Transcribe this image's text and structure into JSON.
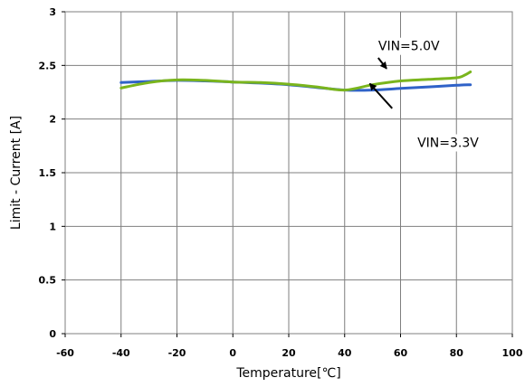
{
  "chart_data": {
    "type": "line",
    "title": "",
    "xlabel": "Temperature[℃]",
    "ylabel": "Limit - Current [A]",
    "xlim": [
      -60,
      100
    ],
    "ylim": [
      0,
      3
    ],
    "x_ticks": [
      -60,
      -40,
      -20,
      0,
      20,
      40,
      60,
      80,
      100
    ],
    "y_ticks": [
      0,
      0.5,
      1,
      1.5,
      2,
      2.5,
      3
    ],
    "x_tick_labels": [
      "-60",
      "-40",
      "-20",
      "0",
      "20",
      "40",
      "60",
      "80",
      "100"
    ],
    "y_tick_labels": [
      "0",
      "0.5",
      "1",
      "1.5",
      "2",
      "2.5",
      "3"
    ],
    "grid": true,
    "series": [
      {
        "color": "#2f62c8",
        "x": [
          -40,
          -30,
          -20,
          -10,
          0,
          10,
          20,
          30,
          40,
          50,
          60,
          70,
          80,
          85
        ],
        "y": [
          2.34,
          2.35,
          2.36,
          2.355,
          2.345,
          2.335,
          2.32,
          2.295,
          2.27,
          2.27,
          2.285,
          2.3,
          2.315,
          2.32
        ]
      },
      {
        "color": "#7ab51d",
        "x": [
          -40,
          -30,
          -20,
          -10,
          0,
          10,
          20,
          30,
          40,
          50,
          60,
          70,
          80,
          83,
          85
        ],
        "y": [
          2.29,
          2.34,
          2.365,
          2.36,
          2.345,
          2.34,
          2.325,
          2.3,
          2.27,
          2.32,
          2.355,
          2.37,
          2.385,
          2.41,
          2.44
        ]
      }
    ],
    "annotations": [
      {
        "text": "VIN=5.0V",
        "at": [
          63,
          2.64
        ],
        "arrow_from": [
          52,
          2.57
        ],
        "arrow_to": [
          55,
          2.47
        ]
      },
      {
        "text": "VIN=3.3V",
        "at": [
          77,
          1.74
        ],
        "arrow_from": [
          57,
          2.1
        ],
        "arrow_to": [
          49,
          2.33
        ]
      }
    ]
  }
}
